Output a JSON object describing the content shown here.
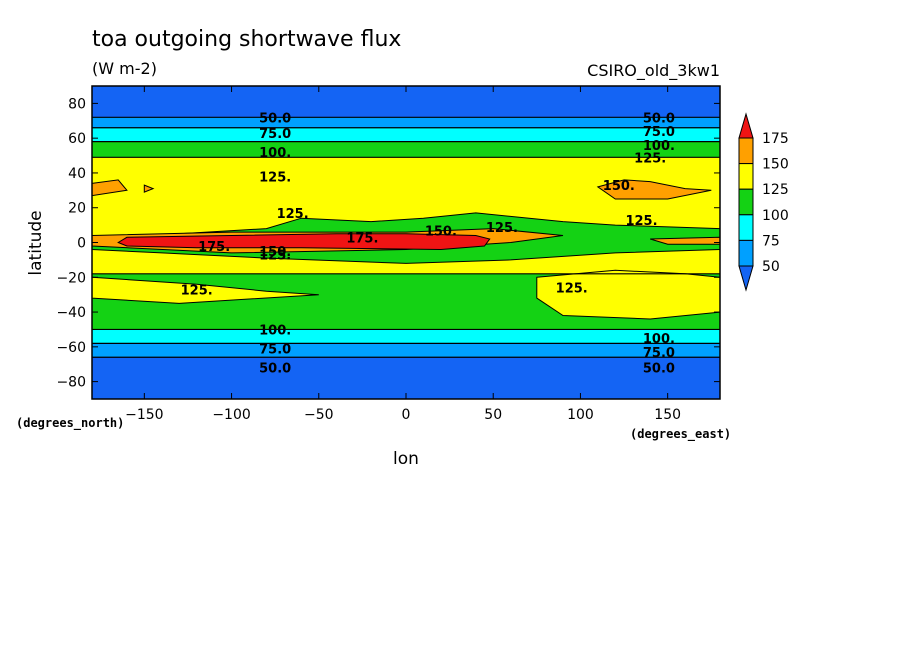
{
  "chart_data": {
    "type": "heatmap",
    "title": "toa outgoing shortwave flux",
    "subtitle": "(W m-2)",
    "model_label": "CSIRO_old_3kw1",
    "xlabel": "lon",
    "ylabel": "latitude",
    "x_units": "(degrees_east)",
    "y_units": "(degrees_north)",
    "xlim": [
      -180,
      180
    ],
    "ylim": [
      -90,
      90
    ],
    "x_ticks": [
      -150,
      -100,
      -50,
      0,
      50,
      100,
      150
    ],
    "y_ticks": [
      -80,
      -60,
      -40,
      -20,
      0,
      20,
      40,
      60,
      80
    ],
    "colorbar": {
      "levels": [
        50,
        75,
        100,
        125,
        150,
        175
      ],
      "colors": [
        "#1464f4",
        "#00a0ff",
        "#00ffff",
        "#14d214",
        "#ffff00",
        "#ffa000",
        "#f01414"
      ],
      "extend": "both"
    },
    "bands": [
      {
        "lat": [
          72,
          90
        ],
        "class": 0
      },
      {
        "lat": [
          66,
          72
        ],
        "class": 1
      },
      {
        "lat": [
          58,
          66
        ],
        "class": 2
      },
      {
        "lat": [
          49,
          58
        ],
        "class": 3
      },
      {
        "lat": [
          -18,
          49
        ],
        "class": 4
      },
      {
        "lat": [
          -50,
          -18
        ],
        "class": 3
      },
      {
        "lat": [
          -58,
          -50
        ],
        "class": 2
      },
      {
        "lat": [
          -66,
          -58
        ],
        "class": 1
      },
      {
        "lat": [
          -90,
          -66
        ],
        "class": 0
      }
    ],
    "regions": [
      {
        "class": 3,
        "points": [
          [
            -180,
            2
          ],
          [
            -80,
            8
          ],
          [
            -60,
            14
          ],
          [
            -20,
            12
          ],
          [
            10,
            14
          ],
          [
            40,
            17
          ],
          [
            90,
            12
          ],
          [
            120,
            10
          ],
          [
            180,
            8
          ],
          [
            180,
            -4
          ],
          [
            120,
            -6
          ],
          [
            60,
            -10
          ],
          [
            0,
            -12
          ],
          [
            -80,
            -9
          ],
          [
            -140,
            -6
          ],
          [
            -180,
            -4
          ]
        ]
      },
      {
        "class": 4,
        "points": [
          [
            -180,
            -20
          ],
          [
            -120,
            -24
          ],
          [
            -80,
            -28
          ],
          [
            -50,
            -30
          ],
          [
            -130,
            -35
          ],
          [
            -180,
            -32
          ]
        ]
      },
      {
        "class": 4,
        "points": [
          [
            75,
            -20
          ],
          [
            120,
            -16
          ],
          [
            160,
            -18
          ],
          [
            180,
            -20
          ],
          [
            180,
            -40
          ],
          [
            140,
            -44
          ],
          [
            90,
            -42
          ],
          [
            75,
            -32
          ]
        ]
      },
      {
        "class": 5,
        "points": [
          [
            -180,
            34
          ],
          [
            -165,
            36
          ],
          [
            -160,
            30
          ],
          [
            -180,
            27
          ]
        ]
      },
      {
        "class": 5,
        "points": [
          [
            -150,
            33
          ],
          [
            -145,
            31
          ],
          [
            -150,
            29
          ]
        ]
      },
      {
        "class": 5,
        "points": [
          [
            110,
            32
          ],
          [
            125,
            36
          ],
          [
            140,
            35
          ],
          [
            160,
            31
          ],
          [
            175,
            30
          ],
          [
            150,
            25
          ],
          [
            120,
            25
          ]
        ]
      },
      {
        "class": 5,
        "points": [
          [
            -180,
            4
          ],
          [
            -100,
            6
          ],
          [
            0,
            6
          ],
          [
            50,
            8
          ],
          [
            90,
            4
          ],
          [
            60,
            0
          ],
          [
            0,
            -4
          ],
          [
            -100,
            -6
          ],
          [
            -180,
            -2
          ]
        ]
      },
      {
        "class": 5,
        "points": [
          [
            140,
            2
          ],
          [
            180,
            3
          ],
          [
            180,
            -1
          ],
          [
            150,
            -1
          ]
        ]
      },
      {
        "class": 6,
        "points": [
          [
            -165,
            0
          ],
          [
            -160,
            3
          ],
          [
            -100,
            4
          ],
          [
            -40,
            5
          ],
          [
            0,
            5
          ],
          [
            40,
            4
          ],
          [
            48,
            2
          ],
          [
            45,
            -2
          ],
          [
            20,
            -4
          ],
          [
            -60,
            -3
          ],
          [
            -120,
            -3
          ],
          [
            -160,
            -2
          ]
        ]
      }
    ],
    "contour_labels": [
      {
        "text": "50.0",
        "lon": -75,
        "lat": 72
      },
      {
        "text": "50.0",
        "lon": 145,
        "lat": 72
      },
      {
        "text": "75.0",
        "lon": -75,
        "lat": 63
      },
      {
        "text": "75.0",
        "lon": 145,
        "lat": 64
      },
      {
        "text": "100.",
        "lon": -75,
        "lat": 52
      },
      {
        "text": "100.",
        "lon": 145,
        "lat": 56
      },
      {
        "text": "125.",
        "lon": 140,
        "lat": 49
      },
      {
        "text": "125.",
        "lon": -75,
        "lat": 38
      },
      {
        "text": "150.",
        "lon": 122,
        "lat": 33
      },
      {
        "text": "125.",
        "lon": -65,
        "lat": 17
      },
      {
        "text": "125.",
        "lon": 135,
        "lat": 13
      },
      {
        "text": "125.",
        "lon": 55,
        "lat": 9
      },
      {
        "text": "150.",
        "lon": 20,
        "lat": 7
      },
      {
        "text": "175.",
        "lon": -25,
        "lat": 3
      },
      {
        "text": "175.",
        "lon": -110,
        "lat": -2
      },
      {
        "text": "150.",
        "lon": -75,
        "lat": -5
      },
      {
        "text": "125.",
        "lon": -75,
        "lat": -7
      },
      {
        "text": "125.",
        "lon": -120,
        "lat": -27
      },
      {
        "text": "125.",
        "lon": 95,
        "lat": -26
      },
      {
        "text": "100.",
        "lon": -75,
        "lat": -50
      },
      {
        "text": "100.",
        "lon": 145,
        "lat": -55
      },
      {
        "text": "75.0",
        "lon": -75,
        "lat": -61
      },
      {
        "text": "75.0",
        "lon": 145,
        "lat": -63
      },
      {
        "text": "50.0",
        "lon": -75,
        "lat": -72
      },
      {
        "text": "50.0",
        "lon": 145,
        "lat": -72
      }
    ]
  }
}
